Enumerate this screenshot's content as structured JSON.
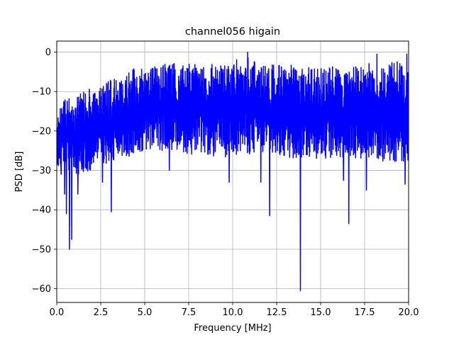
{
  "chart_data": {
    "type": "line",
    "title": "channel056 higain",
    "xlabel": "Frequency [MHz]",
    "ylabel": "PSD [dB]",
    "xlim": [
      0.0,
      20.0
    ],
    "ylim": [
      -63.5,
      2.8
    ],
    "x_ticks": [
      0.0,
      2.5,
      5.0,
      7.5,
      10.0,
      12.5,
      15.0,
      17.5,
      20.0
    ],
    "x_tick_labels": [
      "0.0",
      "2.5",
      "5.0",
      "7.5",
      "10.0",
      "12.5",
      "15.0",
      "17.5",
      "20.0"
    ],
    "y_ticks": [
      0,
      -10,
      -20,
      -30,
      -40,
      -50,
      -60
    ],
    "y_tick_labels": [
      "0",
      "−10",
      "−20",
      "−30",
      "−40",
      "−50",
      "−60"
    ],
    "grid": true,
    "series": [
      {
        "color": "#0000ff",
        "envelope": {
          "x": [
            0.0,
            0.5,
            1.0,
            1.5,
            2.0,
            2.5,
            3.0,
            3.5,
            4.0,
            4.5,
            5.0,
            5.5,
            6.0,
            6.5,
            7.0,
            7.5,
            8.0,
            8.5,
            9.0,
            9.5,
            10.0,
            10.5,
            11.0,
            11.5,
            12.0,
            12.5,
            13.0,
            13.5,
            14.0,
            14.5,
            15.0,
            15.5,
            16.0,
            16.5,
            17.0,
            17.5,
            18.0,
            18.5,
            19.0,
            19.5,
            20.0
          ],
          "upper": [
            -14,
            -12,
            -11,
            -10,
            -9,
            -8,
            -7,
            -6,
            -5,
            -4,
            -4,
            -3.5,
            -3,
            -3,
            -2.5,
            -3,
            -3,
            -2.5,
            -3,
            -3,
            -2,
            -1.5,
            -1,
            -2,
            -3,
            -3,
            -3,
            -3.5,
            -3.5,
            -4,
            -4,
            -3.5,
            -4,
            -4,
            -3.5,
            -3,
            -2,
            -3,
            -2.5,
            -2,
            -2
          ],
          "lower": [
            -29,
            -30,
            -31,
            -31,
            -30,
            -29,
            -28,
            -27,
            -27,
            -26,
            -26,
            -25,
            -25,
            -25,
            -25,
            -26,
            -26,
            -26,
            -27,
            -27,
            -26,
            -26,
            -26,
            -26,
            -26,
            -27,
            -27,
            -27,
            -27,
            -27,
            -27,
            -27,
            -27,
            -27,
            -27,
            -27,
            -27,
            -28,
            -28,
            -28,
            -28
          ]
        },
        "dips": [
          {
            "x": 0.25,
            "y": -31
          },
          {
            "x": 0.45,
            "y": -36
          },
          {
            "x": 0.55,
            "y": -41
          },
          {
            "x": 0.72,
            "y": -50
          },
          {
            "x": 0.85,
            "y": -47.5
          },
          {
            "x": 1.2,
            "y": -36
          },
          {
            "x": 2.6,
            "y": -33
          },
          {
            "x": 3.1,
            "y": -40.5
          },
          {
            "x": 6.4,
            "y": -30
          },
          {
            "x": 9.8,
            "y": -33
          },
          {
            "x": 11.6,
            "y": -33
          },
          {
            "x": 12.1,
            "y": -41.5
          },
          {
            "x": 13.85,
            "y": -60.5
          },
          {
            "x": 16.3,
            "y": -32.5
          },
          {
            "x": 16.6,
            "y": -43.5
          },
          {
            "x": 17.6,
            "y": -35
          },
          {
            "x": 19.8,
            "y": -33.5
          }
        ],
        "peaks": [
          {
            "x": 10.85,
            "y": 0.0
          },
          {
            "x": 18.2,
            "y": -0.5
          },
          {
            "x": 19.9,
            "y": -0.5
          }
        ]
      }
    ]
  }
}
